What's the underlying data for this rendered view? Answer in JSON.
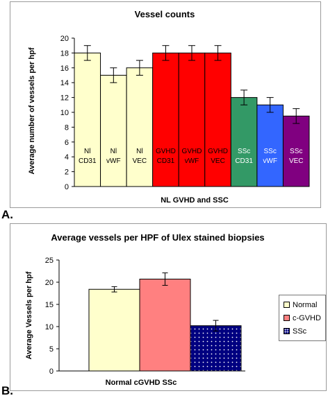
{
  "panel_labels": {
    "a": "A.",
    "b": "B."
  },
  "chart_data": [
    {
      "type": "bar",
      "title": "Vessel counts",
      "xlabel": "NL GVHD and SSC",
      "ylabel": "Average number of vessels per hpf",
      "ylim": [
        0,
        20
      ],
      "yticks": [
        0,
        2,
        4,
        6,
        8,
        10,
        12,
        14,
        16,
        18,
        20
      ],
      "grid": false,
      "categories": [
        {
          "line1": "Nl",
          "line2": "CD31"
        },
        {
          "line1": "Nl",
          "line2": "vWF"
        },
        {
          "line1": "Nl",
          "line2": "VEC"
        },
        {
          "line1": "GVHD",
          "line2": "CD31"
        },
        {
          "line1": "GVHD",
          "line2": "vWF"
        },
        {
          "line1": "GVHD",
          "line2": "VEC"
        },
        {
          "line1": "SSc",
          "line2": "CD31"
        },
        {
          "line1": "SSc",
          "line2": "vWF"
        },
        {
          "line1": "SSc",
          "line2": "VEC"
        }
      ],
      "values": [
        18,
        15,
        16,
        18,
        18,
        18,
        12,
        11,
        9.5
      ],
      "errors": [
        1,
        1,
        1,
        1,
        1,
        1,
        1,
        1,
        1
      ],
      "colors": [
        "#ffffcc",
        "#ffffcc",
        "#ffffcc",
        "#ff0000",
        "#ff0000",
        "#ff0000",
        "#339966",
        "#3366ff",
        "#800080"
      ],
      "label_colors": [
        "#000000",
        "#000000",
        "#000000",
        "#000000",
        "#000000",
        "#000000",
        "#ffffff",
        "#ffffff",
        "#ffffff"
      ]
    },
    {
      "type": "bar",
      "title": "Average vessels per HPF of Ulex stained biopsies",
      "xlabel": "Normal cGVHD SSc",
      "ylabel": "Average Vessels per hpf",
      "ylim": [
        0,
        25
      ],
      "yticks": [
        0,
        5,
        10,
        15,
        20,
        25
      ],
      "grid": false,
      "legend_position": "right",
      "series": [
        {
          "name": "Normal",
          "value": 18.4,
          "error": 0.6,
          "color": "#ffffcc",
          "pattern": "solid"
        },
        {
          "name": "c-GVHD",
          "value": 20.7,
          "error": 1.4,
          "color": "#ff8080",
          "pattern": "solid"
        },
        {
          "name": "SSc",
          "value": 10.2,
          "error": 1.2,
          "color": "#000080",
          "pattern": "dotted"
        }
      ]
    }
  ]
}
